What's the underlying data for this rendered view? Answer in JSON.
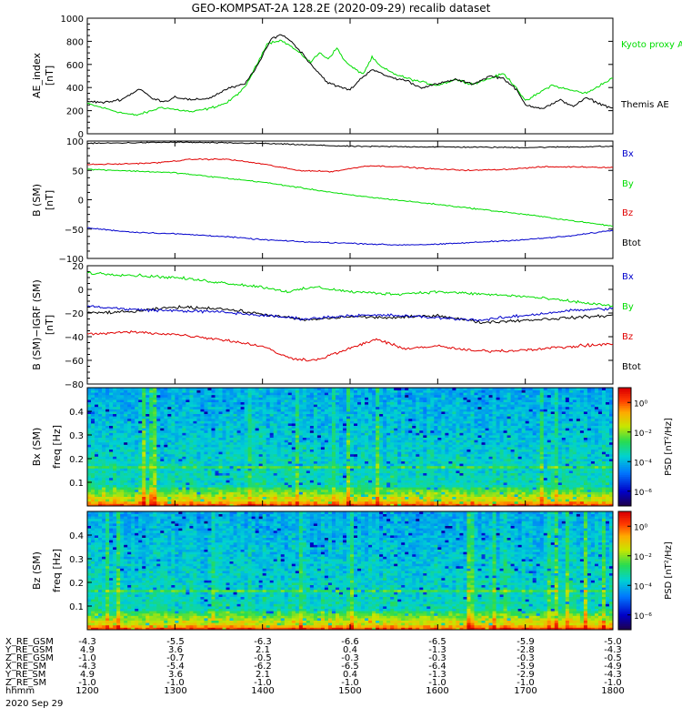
{
  "title": "GEO-KOMPSAT-2A 128.2E (2020-09-29) recalib dataset",
  "colors": {
    "black": "#000000",
    "red": "#e00000",
    "green": "#00dd00",
    "blue": "#0000cc"
  },
  "ae_panel": {
    "ylabel": [
      "AE_index",
      "[nT]"
    ],
    "legend": [
      "Kyoto proxy AE",
      "Themis AE"
    ],
    "yticks": [
      "0",
      "200",
      "400",
      "600",
      "800",
      "1000"
    ]
  },
  "b_panel": {
    "ylabel": [
      "B (SM)",
      "[nT]"
    ],
    "legend": [
      "Bx",
      "By",
      "Bz",
      "Btot"
    ],
    "yticks": [
      "−100",
      "−50",
      "0",
      "50",
      "100"
    ]
  },
  "db_panel": {
    "ylabel": [
      "B (SM)−IGRF (SM)",
      "[nT]"
    ],
    "legend": [
      "Bx",
      "By",
      "Bz",
      "Btot"
    ],
    "yticks": [
      "−80",
      "−60",
      "−40",
      "−20",
      "0",
      "20"
    ]
  },
  "spec1": {
    "ylabel": [
      "Bx (SM)",
      "freq [Hz]"
    ],
    "yticks": [
      "0.1",
      "0.2",
      "0.3",
      "0.4"
    ],
    "cbar_label": "PSD [nT²/Hz]",
    "cbar_ticks": [
      "10⁰",
      "10⁻²",
      "10⁻⁴",
      "10⁻⁶"
    ]
  },
  "spec2": {
    "ylabel": [
      "Bz (SM)",
      "freq [Hz]"
    ],
    "yticks": [
      "0.1",
      "0.2",
      "0.3",
      "0.4"
    ],
    "cbar_label": "PSD [nT²/Hz]",
    "cbar_ticks": [
      "10⁰",
      "10⁻²",
      "10⁻⁴",
      "10⁻⁶"
    ]
  },
  "ephemeris": {
    "rows": [
      {
        "label": "X_RE_GSM",
        "values": [
          "-4.3",
          "-5.5",
          "-6.3",
          "-6.6",
          "-6.5",
          "-5.9",
          "-5.0"
        ]
      },
      {
        "label": "Y_RE_GSM",
        "values": [
          "4.9",
          "3.6",
          "2.1",
          "0.4",
          "-1.3",
          "-2.8",
          "-4.3"
        ]
      },
      {
        "label": "Z_RE_GSM",
        "values": [
          "-1.0",
          "-0.7",
          "-0.5",
          "-0.3",
          "-0.3",
          "-0.3",
          "-0.5"
        ]
      },
      {
        "label": "X_RE_SM",
        "values": [
          "-4.3",
          "-5.4",
          "-6.2",
          "-6.5",
          "-6.4",
          "-5.9",
          "-4.9"
        ]
      },
      {
        "label": "Y_RE_SM",
        "values": [
          "4.9",
          "3.6",
          "2.1",
          "0.4",
          "-1.3",
          "-2.9",
          "-4.3"
        ]
      },
      {
        "label": "Z_RE_SM",
        "values": [
          "-1.0",
          "-1.0",
          "-1.0",
          "-1.0",
          "-1.0",
          "-1.0",
          "-1.0"
        ]
      },
      {
        "label": "hhmm",
        "values": [
          "1200",
          "1300",
          "1400",
          "1500",
          "1600",
          "1700",
          "1800"
        ]
      }
    ],
    "date": "2020 Sep 29"
  },
  "chart_data": [
    {
      "type": "line",
      "x_unit": "UT hours",
      "ylabel": "AE_index [nT]",
      "ylim": [
        0,
        1000
      ],
      "xlim": [
        12,
        18
      ],
      "series": [
        {
          "name": "Kyoto proxy AE",
          "color": "green",
          "x": [
            12.0,
            12.2,
            12.4,
            12.55,
            12.7,
            12.85,
            13.0,
            13.2,
            13.4,
            13.6,
            13.8,
            13.95,
            14.05,
            14.2,
            14.3,
            14.42,
            14.55,
            14.65,
            14.75,
            14.85,
            14.95,
            15.05,
            15.15,
            15.25,
            15.35,
            15.5,
            15.65,
            15.8,
            16.0,
            16.2,
            16.4,
            16.6,
            16.75,
            16.9,
            17.0,
            17.15,
            17.3,
            17.5,
            17.7,
            17.85,
            18.0
          ],
          "y": [
            260,
            220,
            180,
            160,
            190,
            230,
            210,
            190,
            220,
            270,
            400,
            620,
            780,
            810,
            770,
            700,
            620,
            700,
            650,
            740,
            620,
            560,
            520,
            660,
            580,
            520,
            480,
            450,
            420,
            470,
            430,
            480,
            520,
            400,
            280,
            350,
            420,
            380,
            350,
            420,
            480
          ]
        },
        {
          "name": "Themis AE",
          "color": "black",
          "x": [
            12.0,
            12.2,
            12.4,
            12.6,
            12.75,
            12.9,
            13.0,
            13.2,
            13.4,
            13.6,
            13.8,
            13.95,
            14.1,
            14.2,
            14.3,
            14.45,
            14.6,
            14.75,
            14.9,
            15.0,
            15.1,
            15.25,
            15.35,
            15.5,
            15.65,
            15.8,
            16.0,
            16.2,
            16.4,
            16.6,
            16.75,
            16.9,
            17.0,
            17.2,
            17.4,
            17.55,
            17.7,
            17.85,
            18.0
          ],
          "y": [
            280,
            270,
            300,
            390,
            300,
            280,
            320,
            290,
            310,
            390,
            430,
            600,
            820,
            860,
            820,
            700,
            560,
            440,
            400,
            380,
            460,
            560,
            520,
            480,
            460,
            400,
            430,
            470,
            430,
            500,
            480,
            380,
            250,
            220,
            290,
            240,
            310,
            260,
            220
          ]
        }
      ]
    },
    {
      "type": "line",
      "x_unit": "UT hours",
      "ylabel": "B (SM) [nT]",
      "ylim": [
        -100,
        100
      ],
      "xlim": [
        12,
        18
      ],
      "series": [
        {
          "name": "Btot",
          "color": "black",
          "x": [
            12,
            13,
            14,
            15,
            16,
            17,
            18
          ],
          "y": [
            96,
            98,
            96,
            91,
            90,
            89,
            91
          ]
        },
        {
          "name": "Bz",
          "color": "red",
          "x": [
            12,
            12.4,
            12.8,
            13.2,
            13.6,
            14.0,
            14.4,
            14.8,
            15.2,
            15.6,
            16.0,
            16.4,
            16.8,
            17.2,
            17.6,
            18.0
          ],
          "y": [
            60,
            61,
            63,
            69,
            69,
            61,
            50,
            48,
            58,
            56,
            52,
            50,
            52,
            56,
            56,
            55
          ]
        },
        {
          "name": "By",
          "color": "green",
          "x": [
            12,
            13,
            14,
            15,
            16,
            17,
            18
          ],
          "y": [
            52,
            46,
            30,
            8,
            -8,
            -25,
            -45
          ]
        },
        {
          "name": "Bx",
          "color": "blue",
          "x": [
            12,
            12.5,
            13,
            13.5,
            14,
            14.5,
            15,
            15.5,
            16,
            16.5,
            17,
            17.5,
            18
          ],
          "y": [
            -48,
            -55,
            -58,
            -62,
            -68,
            -72,
            -74,
            -77,
            -76,
            -72,
            -68,
            -62,
            -52
          ]
        }
      ]
    },
    {
      "type": "line",
      "x_unit": "UT hours",
      "ylabel": "B (SM)−IGRF (SM) [nT]",
      "ylim": [
        -80,
        20
      ],
      "xlim": [
        12,
        18
      ],
      "series": [
        {
          "name": "By",
          "color": "green",
          "x": [
            12,
            12.5,
            13,
            13.5,
            14,
            14.3,
            14.6,
            15,
            15.5,
            16,
            16.5,
            17,
            17.5,
            18
          ],
          "y": [
            14,
            12,
            10,
            6,
            2,
            -2,
            2,
            -2,
            -4,
            -2,
            -4,
            -6,
            -10,
            -14
          ]
        },
        {
          "name": "Btot",
          "color": "black",
          "x": [
            12,
            12.5,
            13,
            13.5,
            14,
            14.5,
            15,
            15.5,
            16,
            16.5,
            17,
            17.5,
            18
          ],
          "y": [
            -20,
            -19,
            -15,
            -16,
            -21,
            -26,
            -23,
            -24,
            -22,
            -28,
            -26,
            -24,
            -22
          ]
        },
        {
          "name": "Bx",
          "color": "blue",
          "x": [
            12,
            12.5,
            13,
            13.5,
            14,
            14.5,
            15,
            15.5,
            16,
            16.5,
            17,
            17.5,
            18
          ],
          "y": [
            -14,
            -17,
            -18,
            -19,
            -22,
            -25,
            -22,
            -22,
            -24,
            -26,
            -22,
            -18,
            -16
          ]
        },
        {
          "name": "Bz",
          "color": "red",
          "x": [
            12,
            12.5,
            13,
            13.5,
            14,
            14.3,
            14.6,
            15,
            15.3,
            15.6,
            16,
            16.4,
            16.8,
            17.2,
            17.6,
            18
          ],
          "y": [
            -38,
            -36,
            -38,
            -42,
            -48,
            -58,
            -60,
            -50,
            -42,
            -50,
            -48,
            -52,
            -52,
            -50,
            -48,
            -46
          ]
        }
      ]
    },
    {
      "type": "heatmap",
      "ylabel": "Bx (SM) freq [Hz]",
      "ylim": [
        0,
        0.5
      ],
      "zlabel": "PSD [nT²/Hz]",
      "zscale": "log",
      "zlim_exponent": [
        -7,
        1
      ]
    },
    {
      "type": "heatmap",
      "ylabel": "Bz (SM) freq [Hz]",
      "ylim": [
        0,
        0.5
      ],
      "zlabel": "PSD [nT²/Hz]",
      "zscale": "log",
      "zlim_exponent": [
        -7,
        1
      ]
    }
  ]
}
